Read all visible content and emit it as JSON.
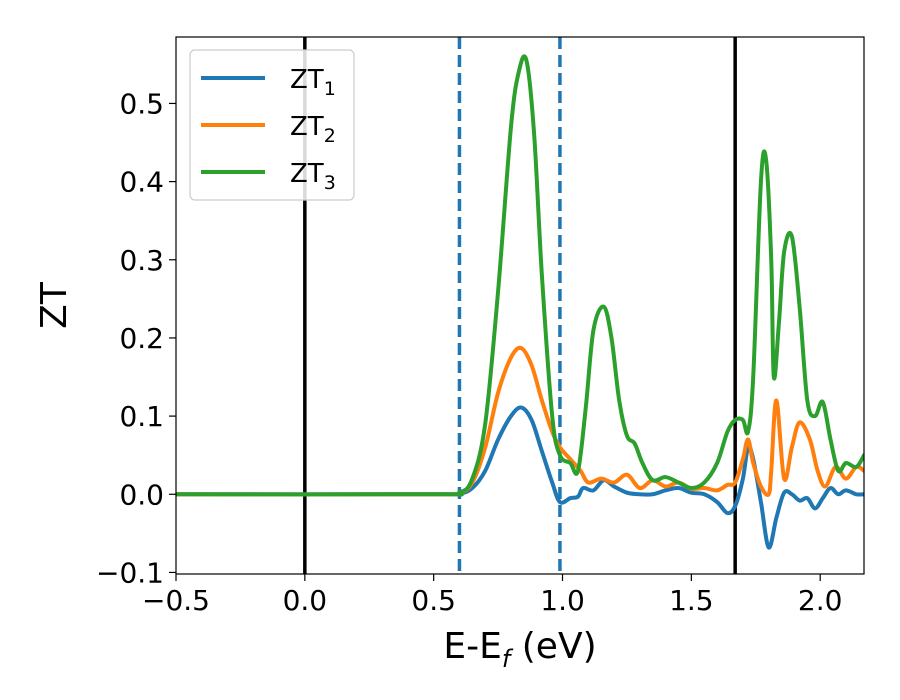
{
  "chart_data": {
    "type": "line",
    "xlabel": "E-E",
    "xlabel_sub": "f",
    "xlabel_unit": " (eV)",
    "ylabel": "ZT",
    "xlim": [
      -0.5,
      2.17
    ],
    "ylim": [
      -0.102,
      0.585
    ],
    "xticks": [
      -0.5,
      0.0,
      0.5,
      1.0,
      1.5,
      2.0
    ],
    "xtick_labels": [
      "−0.5",
      "0.0",
      "0.5",
      "1.0",
      "1.5",
      "2.0"
    ],
    "yticks": [
      -0.1,
      0.0,
      0.1,
      0.2,
      0.3,
      0.4,
      0.5
    ],
    "ytick_labels": [
      "−0.1",
      "0.0",
      "0.1",
      "0.2",
      "0.3",
      "0.4",
      "0.5"
    ],
    "grid": false,
    "legend": "top-left",
    "vlines": [
      {
        "x": 0.0,
        "style": "solid",
        "color": "#000000"
      },
      {
        "x": 1.67,
        "style": "solid",
        "color": "#000000"
      },
      {
        "x": 0.6,
        "style": "dashed",
        "color": "#1f77b4"
      },
      {
        "x": 0.99,
        "style": "dashed",
        "color": "#1f77b4"
      }
    ],
    "series": [
      {
        "name": "ZT",
        "sub": "1",
        "color": "#1f77b4",
        "x": [
          -0.5,
          0.5,
          0.6,
          0.65,
          0.7,
          0.75,
          0.8,
          0.84,
          0.88,
          0.92,
          0.96,
          0.99,
          1.03,
          1.06,
          1.08,
          1.12,
          1.16,
          1.2,
          1.25,
          1.3,
          1.35,
          1.4,
          1.45,
          1.5,
          1.55,
          1.6,
          1.64,
          1.67,
          1.7,
          1.72,
          1.74,
          1.77,
          1.8,
          1.83,
          1.86,
          1.89,
          1.92,
          1.95,
          1.98,
          2.01,
          2.04,
          2.07,
          2.1,
          2.14,
          2.17
        ],
        "y": [
          0.0,
          0.0,
          0.001,
          0.008,
          0.03,
          0.07,
          0.1,
          0.111,
          0.095,
          0.055,
          0.015,
          -0.01,
          -0.005,
          -0.003,
          0.008,
          0.005,
          0.018,
          0.01,
          0.002,
          0.0,
          0.0,
          0.005,
          0.008,
          0.002,
          0.0,
          -0.01,
          -0.024,
          -0.015,
          0.02,
          0.06,
          0.045,
          -0.01,
          -0.068,
          -0.03,
          0.002,
          0.0,
          -0.008,
          -0.005,
          -0.018,
          -0.005,
          0.008,
          0.0,
          0.005,
          0.0,
          0.0
        ]
      },
      {
        "name": "ZT",
        "sub": "2",
        "color": "#ff7f0e",
        "x": [
          -0.5,
          0.5,
          0.6,
          0.65,
          0.7,
          0.75,
          0.8,
          0.84,
          0.88,
          0.92,
          0.96,
          0.99,
          1.03,
          1.07,
          1.1,
          1.15,
          1.2,
          1.25,
          1.3,
          1.35,
          1.4,
          1.45,
          1.5,
          1.55,
          1.6,
          1.64,
          1.67,
          1.7,
          1.72,
          1.74,
          1.77,
          1.8,
          1.81,
          1.83,
          1.86,
          1.89,
          1.92,
          1.96,
          1.99,
          2.02,
          2.06,
          2.1,
          2.14,
          2.17
        ],
        "y": [
          0.0,
          0.0,
          0.002,
          0.015,
          0.06,
          0.13,
          0.175,
          0.187,
          0.165,
          0.12,
          0.08,
          0.06,
          0.045,
          0.03,
          0.015,
          0.02,
          0.015,
          0.025,
          0.008,
          0.018,
          0.01,
          0.015,
          0.007,
          0.008,
          0.005,
          0.012,
          0.015,
          0.045,
          0.07,
          0.04,
          0.01,
          0.0,
          0.03,
          0.12,
          0.02,
          0.06,
          0.092,
          0.07,
          0.03,
          0.01,
          0.035,
          0.02,
          0.035,
          0.03
        ]
      },
      {
        "name": "ZT",
        "sub": "3",
        "color": "#2ca02c",
        "x": [
          -0.5,
          0.5,
          0.6,
          0.65,
          0.7,
          0.75,
          0.8,
          0.83,
          0.86,
          0.89,
          0.92,
          0.96,
          0.99,
          1.03,
          1.06,
          1.09,
          1.12,
          1.16,
          1.19,
          1.22,
          1.25,
          1.28,
          1.31,
          1.35,
          1.4,
          1.45,
          1.5,
          1.55,
          1.6,
          1.64,
          1.67,
          1.7,
          1.72,
          1.74,
          1.77,
          1.79,
          1.81,
          1.82,
          1.84,
          1.86,
          1.89,
          1.92,
          1.95,
          1.98,
          2.01,
          2.04,
          2.07,
          2.1,
          2.14,
          2.17
        ],
        "y": [
          0.0,
          0.0,
          0.002,
          0.02,
          0.09,
          0.26,
          0.47,
          0.54,
          0.555,
          0.46,
          0.28,
          0.1,
          0.05,
          0.04,
          0.03,
          0.11,
          0.21,
          0.24,
          0.2,
          0.12,
          0.075,
          0.065,
          0.04,
          0.018,
          0.022,
          0.015,
          0.008,
          0.015,
          0.04,
          0.08,
          0.095,
          0.095,
          0.08,
          0.15,
          0.4,
          0.428,
          0.3,
          0.15,
          0.22,
          0.31,
          0.33,
          0.24,
          0.12,
          0.1,
          0.118,
          0.07,
          0.03,
          0.04,
          0.035,
          0.05
        ]
      }
    ]
  }
}
